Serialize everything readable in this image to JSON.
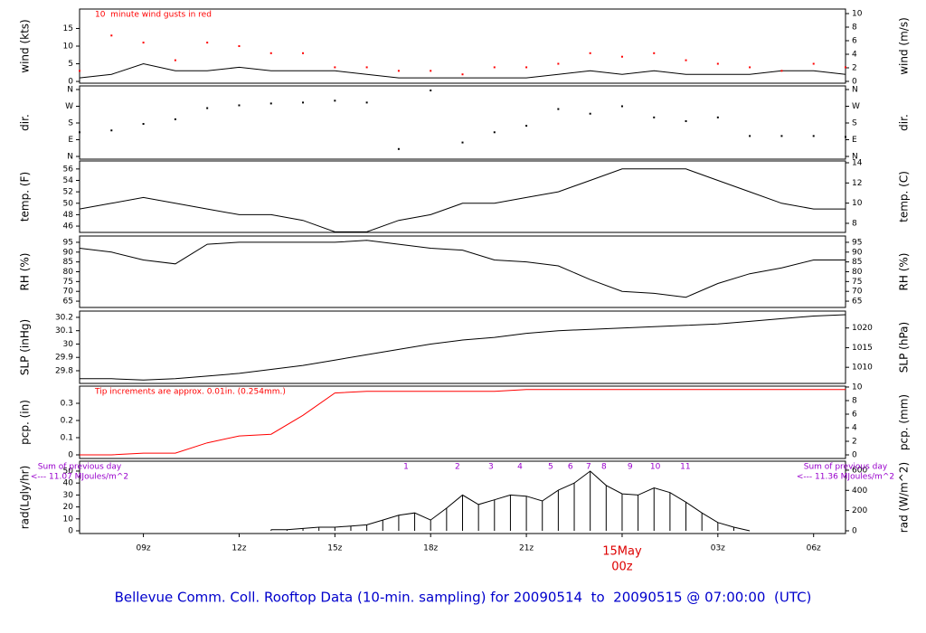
{
  "title": "Bellevue Comm. Coll. Rooftop Data (10-min. sampling) for 20090514  to  20090515 @ 07:00:00  (UTC)",
  "time_axis": {
    "xlim": [
      7,
      31
    ],
    "xticks": [
      {
        "value": 9,
        "label": "09z"
      },
      {
        "value": 12,
        "label": "12z"
      },
      {
        "value": 15,
        "label": "15z"
      },
      {
        "value": 18,
        "label": "18z"
      },
      {
        "value": 21,
        "label": "21z"
      },
      {
        "value": 27,
        "label": "03z"
      },
      {
        "value": 30,
        "label": "06z"
      }
    ],
    "date_marker": {
      "value": 24,
      "date": "15May",
      "time": "00z",
      "color": "#dd0000"
    }
  },
  "chart_data": [
    {
      "type": "line",
      "ylabel": "wind (kts)",
      "y2label": "wind (m/s)",
      "ylim": [
        -0.5,
        20.5
      ],
      "yticks": [
        0,
        5,
        10,
        15
      ],
      "y2lim": [
        -0.27,
        10.67
      ],
      "y2ticks": [
        0,
        2,
        4,
        6,
        8,
        10
      ],
      "x": [
        7,
        8,
        9,
        10,
        11,
        12,
        13,
        14,
        15,
        16,
        17,
        18,
        19,
        20,
        21,
        22,
        23,
        24,
        25,
        26,
        27,
        28,
        29,
        30,
        31
      ],
      "series": [
        {
          "color": "#000000",
          "mark": "line",
          "values": [
            1,
            2,
            5,
            3,
            3,
            4,
            3,
            3,
            3,
            2,
            1,
            1,
            1,
            1,
            1,
            2,
            3,
            2,
            3,
            2,
            2,
            2,
            3,
            3,
            2
          ]
        },
        {
          "color": "#ff0000",
          "mark": "point",
          "values": [
            3,
            13,
            11,
            6,
            11,
            10,
            8,
            8,
            4,
            4,
            3,
            3,
            2,
            4,
            4,
            5,
            8,
            7,
            8,
            6,
            5,
            4,
            3,
            5,
            4
          ]
        }
      ],
      "annotations": [
        {
          "text": "10  minute wind gusts in red",
          "color": "#ff0000",
          "corner": "top-left"
        }
      ]
    },
    {
      "type": "scatter",
      "ylabel": "dir.",
      "y2label": "dir.",
      "ylim": [
        -14.6,
        379.5
      ],
      "yticks": [
        {
          "value": 360,
          "label": "N"
        },
        {
          "value": 270,
          "label": "W"
        },
        {
          "value": 180,
          "label": "S"
        },
        {
          "value": 90,
          "label": "E"
        },
        {
          "value": 0,
          "label": "N"
        }
      ],
      "y2lim": [
        -14.6,
        379.5
      ],
      "y2ticks": [
        {
          "value": 360,
          "label": "N"
        },
        {
          "value": 270,
          "label": "W"
        },
        {
          "value": 180,
          "label": "S"
        },
        {
          "value": 90,
          "label": "E"
        },
        {
          "value": 0,
          "label": "N"
        }
      ],
      "x": [
        7,
        8,
        9,
        10,
        11,
        12,
        13,
        14,
        15,
        16,
        17,
        18,
        19,
        20,
        21,
        22,
        23,
        24,
        25,
        26,
        27,
        28,
        29,
        30,
        31
      ],
      "series": [
        {
          "color": "#000000",
          "mark": "point",
          "values": [
            130,
            140,
            175,
            200,
            260,
            275,
            285,
            290,
            300,
            290,
            40,
            355,
            75,
            130,
            165,
            255,
            230,
            270,
            210,
            190,
            210,
            110,
            110,
            110,
            105
          ]
        }
      ]
    },
    {
      "type": "line",
      "ylabel": "temp. (F)",
      "y2label": "temp. (C)",
      "ylim": [
        44.9,
        57.4
      ],
      "yticks": [
        46,
        48,
        50,
        52,
        54,
        56
      ],
      "y2lim": [
        7.1,
        14.18
      ],
      "y2ticks": [
        8,
        10,
        12,
        14
      ],
      "x": [
        7,
        8,
        9,
        10,
        11,
        12,
        13,
        14,
        15,
        16,
        17,
        18,
        19,
        20,
        21,
        22,
        23,
        24,
        25,
        26,
        27,
        28,
        29,
        30,
        31
      ],
      "series": [
        {
          "color": "#000000",
          "mark": "line",
          "values": [
            49,
            50,
            51,
            50,
            49,
            48,
            48,
            47,
            45,
            45,
            47,
            48,
            50,
            50,
            51,
            52,
            54,
            56,
            56,
            56,
            54,
            52,
            50,
            49,
            49
          ]
        }
      ]
    },
    {
      "type": "line",
      "ylabel": "RH (%)",
      "y2label": "RH (%)",
      "ylim": [
        61.8,
        98.2
      ],
      "yticks": [
        65,
        70,
        75,
        80,
        85,
        90,
        95
      ],
      "y2lim": [
        61.8,
        98.2
      ],
      "y2ticks": [
        65,
        70,
        75,
        80,
        85,
        90,
        95
      ],
      "x": [
        7,
        8,
        9,
        10,
        11,
        12,
        13,
        14,
        15,
        16,
        17,
        18,
        19,
        20,
        21,
        22,
        23,
        24,
        25,
        26,
        27,
        28,
        29,
        30,
        31
      ],
      "series": [
        {
          "color": "#000000",
          "mark": "line",
          "values": [
            92,
            90,
            86,
            84,
            94,
            95,
            95,
            95,
            95,
            96,
            94,
            92,
            91,
            86,
            85,
            83,
            76,
            70,
            69,
            67,
            74,
            79,
            82,
            86,
            86
          ]
        }
      ]
    },
    {
      "type": "line",
      "ylabel": "SLP (inHg)",
      "y2label": "SLP (hPa)",
      "ylim": [
        29.705,
        30.247
      ],
      "yticks": [
        29.8,
        29.9,
        30.0,
        30.1,
        30.2
      ],
      "y2lim": [
        1005.9,
        1024.3
      ],
      "y2ticks": [
        1010,
        1015,
        1020
      ],
      "x": [
        7,
        8,
        9,
        10,
        11,
        12,
        13,
        14,
        15,
        16,
        17,
        18,
        19,
        20,
        21,
        22,
        23,
        24,
        25,
        26,
        27,
        28,
        29,
        30,
        31
      ],
      "series": [
        {
          "color": "#000000",
          "mark": "line",
          "values": [
            29.74,
            29.74,
            29.73,
            29.74,
            29.76,
            29.78,
            29.81,
            29.84,
            29.88,
            29.92,
            29.96,
            30.0,
            30.03,
            30.05,
            30.08,
            30.1,
            30.11,
            30.12,
            30.13,
            30.14,
            30.15,
            30.17,
            30.19,
            30.21,
            30.22
          ]
        }
      ]
    },
    {
      "type": "line",
      "ylabel": "pcp. (in)",
      "y2label": "pcp. (mm)",
      "ylim": [
        -0.021,
        0.4
      ],
      "yticks": [
        0.0,
        0.1,
        0.2,
        0.3
      ],
      "y2lim": [
        -0.53,
        10.13
      ],
      "y2ticks": [
        0,
        2,
        4,
        6,
        8,
        10
      ],
      "x": [
        7,
        8,
        9,
        10,
        11,
        12,
        13,
        14,
        15,
        16,
        17,
        18,
        19,
        20,
        21,
        22,
        23,
        24,
        25,
        26,
        27,
        28,
        29,
        30,
        31
      ],
      "series": [
        {
          "color": "#ff0000",
          "mark": "line",
          "values": [
            0,
            0,
            0.01,
            0.01,
            0.07,
            0.11,
            0.12,
            0.23,
            0.36,
            0.37,
            0.37,
            0.37,
            0.37,
            0.37,
            0.38,
            0.38,
            0.38,
            0.38,
            0.38,
            0.38,
            0.38,
            0.38,
            0.38,
            0.38,
            0.38
          ]
        }
      ],
      "annotations": [
        {
          "text": "Tip increments are approx. 0.01in. (0.254mm.)",
          "color": "#ff0000",
          "corner": "top-left"
        }
      ]
    },
    {
      "type": "bar",
      "ylabel": "rad(Lgly/hr)",
      "y2label": "rad (W/m^2)",
      "ylim": [
        -2.27,
        58.3
      ],
      "yticks": [
        0,
        10,
        20,
        30,
        40,
        50
      ],
      "y2lim": [
        -27,
        689
      ],
      "y2ticks": [
        0,
        200,
        400,
        600
      ],
      "x": [
        13,
        13.5,
        14,
        14.5,
        15,
        15.5,
        16,
        16.5,
        17,
        17.5,
        18,
        18.5,
        19,
        19.5,
        20,
        20.5,
        21,
        21.5,
        22,
        22.5,
        23,
        23.5,
        24,
        24.5,
        25,
        25.5,
        26,
        26.5,
        27,
        27.5,
        28
      ],
      "series": [
        {
          "color": "#000000",
          "mark": "bar",
          "values": [
            1,
            1,
            2,
            3,
            3,
            4,
            5,
            9,
            13,
            15,
            9,
            19,
            30,
            22,
            26,
            30,
            29,
            25,
            34,
            40,
            50,
            38,
            31,
            30,
            36,
            32,
            24,
            15,
            7,
            3,
            0
          ]
        }
      ],
      "hour_marks": [
        {
          "label": "1",
          "x": 17.23
        },
        {
          "label": "2",
          "x": 18.84
        },
        {
          "label": "3",
          "x": 19.89
        },
        {
          "label": "4",
          "x": 20.8
        },
        {
          "label": "5",
          "x": 21.76
        },
        {
          "label": "6",
          "x": 22.38
        },
        {
          "label": "7",
          "x": 22.95
        },
        {
          "label": "8",
          "x": 23.43
        },
        {
          "label": "9",
          "x": 24.25
        },
        {
          "label": "10",
          "x": 25.04
        },
        {
          "label": "11",
          "x": 25.98
        }
      ],
      "mark_color": "#9900cc",
      "annotations": [
        {
          "text": "Sum of previous day",
          "color": "#9900cc",
          "corner": "top-left"
        },
        {
          "text": "<--- 11.07 MJoules/m^2",
          "color": "#9900cc",
          "corner": "top-left"
        },
        {
          "text": "Sum of previous day",
          "color": "#9900cc",
          "corner": "top-right"
        },
        {
          "text": "<--- 11.36 MJoules/m^2",
          "color": "#9900cc",
          "corner": "top-right"
        }
      ]
    }
  ]
}
